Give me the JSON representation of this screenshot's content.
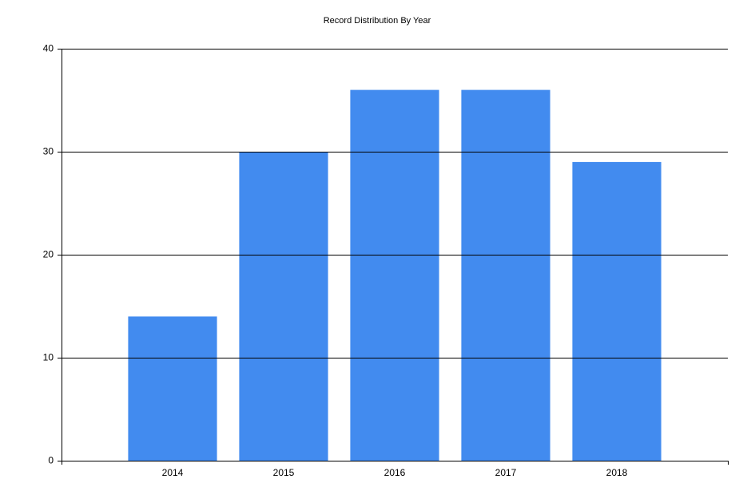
{
  "chart_data": {
    "type": "bar",
    "title": "Record Distribution By Year",
    "categories": [
      "2014",
      "2015",
      "2016",
      "2017",
      "2018"
    ],
    "values": [
      14,
      30,
      36,
      36,
      29
    ],
    "color": "#428bef",
    "ylim": [
      0,
      40
    ],
    "yticks": [
      0,
      10,
      20,
      30,
      40
    ],
    "grid": true
  }
}
